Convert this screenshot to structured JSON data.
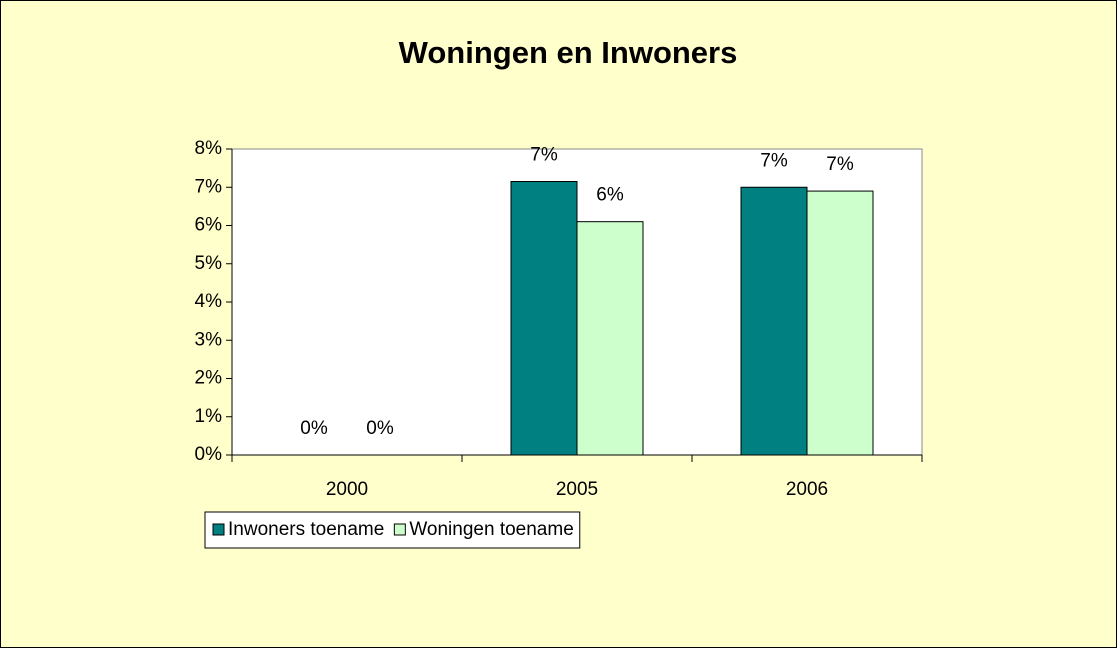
{
  "chart_data": {
    "type": "bar",
    "title": "Woningen en Inwoners",
    "categories": [
      "2000",
      "2005",
      "2006"
    ],
    "series": [
      {
        "name": "Inwoners toename",
        "color": "#008080",
        "values": [
          0,
          7.15,
          7.0
        ],
        "value_labels": [
          "0%",
          "7%",
          "7%"
        ]
      },
      {
        "name": "Woningen toename",
        "color": "#ccffcc",
        "values": [
          0,
          6.1,
          6.9
        ],
        "value_labels": [
          "0%",
          "6%",
          "7%"
        ]
      }
    ],
    "ylim": [
      0,
      8
    ],
    "yticks": [
      {
        "value": 0,
        "label": "0%"
      },
      {
        "value": 1,
        "label": "1%"
      },
      {
        "value": 2,
        "label": "2%"
      },
      {
        "value": 3,
        "label": "3%"
      },
      {
        "value": 4,
        "label": "4%"
      },
      {
        "value": 5,
        "label": "5%"
      },
      {
        "value": 6,
        "label": "6%"
      },
      {
        "value": 7,
        "label": "7%"
      },
      {
        "value": 8,
        "label": "8%"
      }
    ],
    "grid": false,
    "legend": "bottom-left"
  }
}
